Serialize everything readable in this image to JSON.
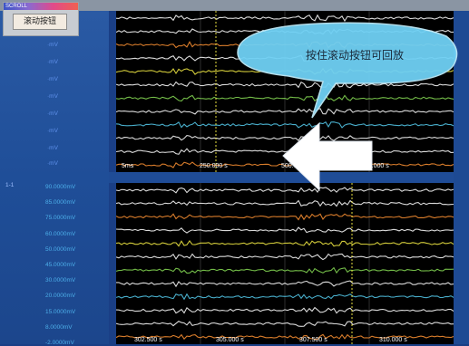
{
  "scroll_widget": {
    "title": "SCROLL",
    "button_label": "滚动按钮"
  },
  "callout": {
    "text": "按住滚动按钮可回放"
  },
  "channel_label": "1-1",
  "top_plot": {
    "x_labels": [
      "5ms",
      "250.000 s",
      "500.000 s",
      "750.000 s"
    ]
  },
  "bottom_plot": {
    "y_labels": [
      "90.0000mV",
      "85.0000mV",
      "75.0000mV",
      "60.0000mV",
      "50.0000mV",
      "45.0000mV",
      "30.0000mV",
      "20.0000mV",
      "15.0000mV",
      "8.0000mV",
      "-2.0000mV"
    ],
    "x_labels": [
      "302.500 s",
      "305.000 s",
      "307.500 s",
      "310.000 s"
    ]
  },
  "colors": {
    "trace_white": "#f2f2f2",
    "trace_orange": "#f08a30",
    "trace_yellow": "#e8e040",
    "trace_green": "#7fd050",
    "trace_cyan": "#50c0e0",
    "arrow": "#ffffff",
    "callout_fill": "#6fd0f4"
  }
}
